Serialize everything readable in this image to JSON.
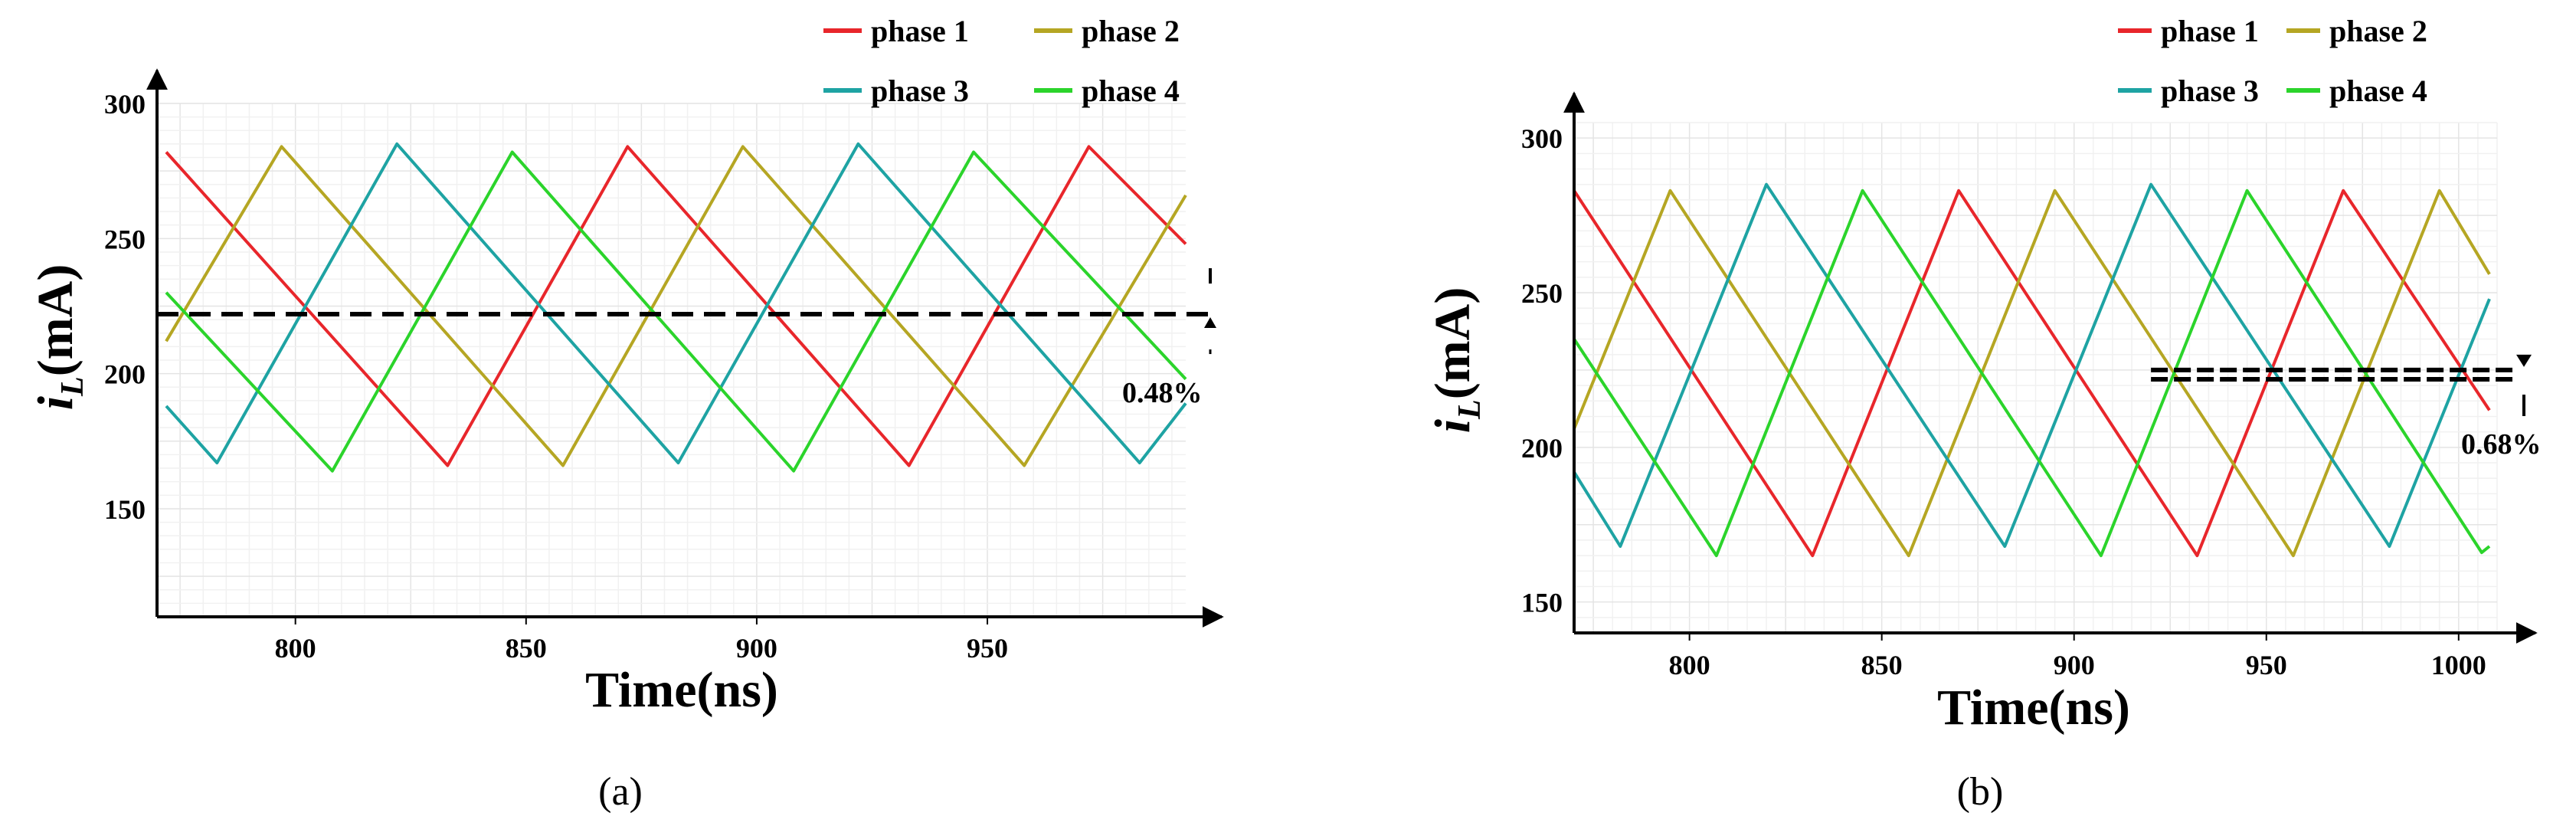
{
  "colors": {
    "phase1": "#e8262b",
    "phase2": "#b5a623",
    "phase3": "#1ea3a3",
    "phase4": "#2bd42b",
    "axis": "#000000",
    "grid_major": "#e4e4e4",
    "grid_minor": "#f1f1f1"
  },
  "chart_data": [
    {
      "type": "line",
      "panel_label": "(a)",
      "xlabel": "Time(ns)",
      "ylabel": "i",
      "ylabel_sub": "L",
      "ylabel_unit": "(mA)",
      "xlim": [
        770,
        993
      ],
      "ylim": [
        110,
        300
      ],
      "xticks": [
        800,
        850,
        900,
        950
      ],
      "yticks": [
        150,
        200,
        250,
        300
      ],
      "grid": true,
      "legend_position": "top-right",
      "annotation": "0.48%",
      "reference_line": 222,
      "series": [
        {
          "name": "phase 1",
          "color_key": "phase1",
          "x": [
            772,
            833,
            872,
            933,
            972,
            993
          ],
          "y": [
            282,
            166,
            284,
            166,
            284,
            248
          ]
        },
        {
          "name": "phase 2",
          "color_key": "phase2",
          "x": [
            772,
            797,
            858,
            897,
            958,
            993
          ],
          "y": [
            212,
            284,
            166,
            284,
            166,
            266
          ]
        },
        {
          "name": "phase 3",
          "color_key": "phase3",
          "x": [
            772,
            783,
            822,
            883,
            922,
            983,
            993
          ],
          "y": [
            188,
            167,
            285,
            167,
            285,
            167,
            189
          ]
        },
        {
          "name": "phase 4",
          "color_key": "phase4",
          "x": [
            772,
            808,
            847,
            908,
            947,
            993
          ],
          "y": [
            230,
            164,
            282,
            164,
            282,
            198
          ]
        }
      ]
    },
    {
      "type": "line",
      "panel_label": "(b)",
      "xlabel": "Time(ns)",
      "ylabel": "i",
      "ylabel_sub": "L",
      "ylabel_unit": "(mA)",
      "xlim": [
        770,
        1010
      ],
      "ylim": [
        140,
        305
      ],
      "xticks": [
        800,
        850,
        900,
        950,
        1000
      ],
      "yticks": [
        150,
        200,
        250,
        300
      ],
      "grid": true,
      "legend_position": "top-right",
      "annotation": "0.68%",
      "reference_lines": [
        225,
        222
      ],
      "series": [
        {
          "name": "phase 1",
          "color_key": "phase1",
          "x": [
            770,
            832,
            870,
            932,
            970,
            1008
          ],
          "y": [
            283,
            165,
            283,
            165,
            283,
            212
          ]
        },
        {
          "name": "phase 2",
          "color_key": "phase2",
          "x": [
            770,
            795,
            857,
            895,
            957,
            995,
            1008
          ],
          "y": [
            206,
            283,
            165,
            283,
            165,
            283,
            256
          ]
        },
        {
          "name": "phase 3",
          "color_key": "phase3",
          "x": [
            770,
            782,
            820,
            882,
            920,
            982,
            1008
          ],
          "y": [
            192,
            168,
            285,
            168,
            285,
            168,
            248
          ]
        },
        {
          "name": "phase 4",
          "color_key": "phase4",
          "x": [
            770,
            807,
            845,
            907,
            945,
            1006,
            1008
          ],
          "y": [
            235,
            165,
            283,
            165,
            283,
            166,
            168
          ]
        }
      ]
    }
  ]
}
